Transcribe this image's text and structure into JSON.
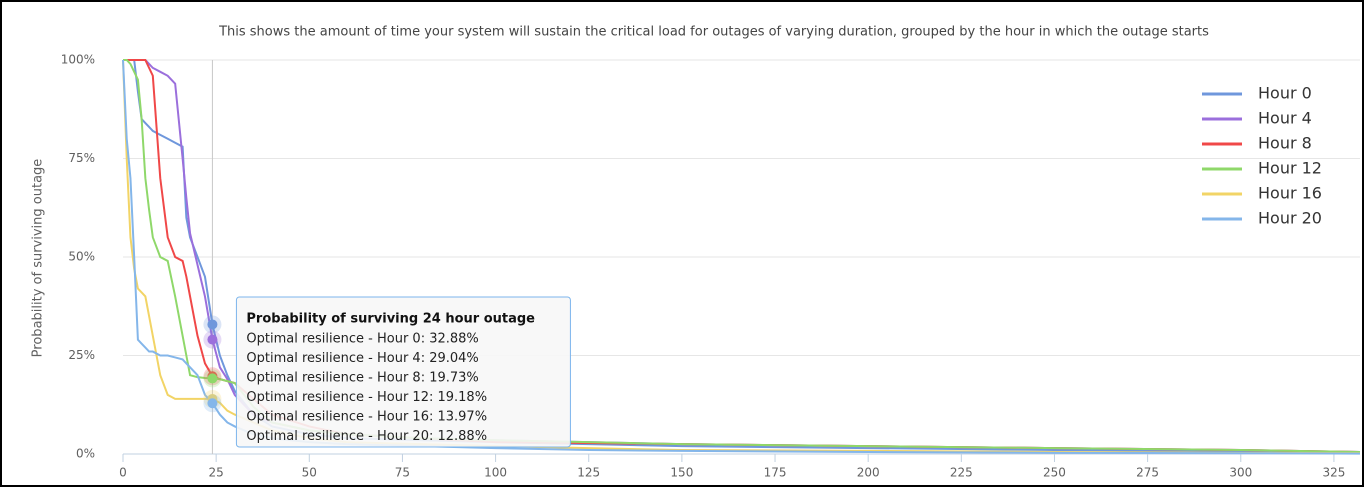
{
  "chart_data": {
    "type": "line",
    "subtitle": "This shows the amount of time your system will sustain the critical load for outages of varying duration, grouped by the hour in which the outage starts",
    "y_label": "Probability of surviving outage",
    "x": [
      0,
      1,
      2,
      3,
      4,
      5,
      6,
      7,
      8,
      10,
      12,
      14,
      16,
      17,
      18,
      20,
      22,
      24,
      26,
      28,
      30,
      35,
      40,
      50,
      60,
      80,
      100,
      125,
      150,
      200,
      250,
      300,
      332
    ],
    "series": [
      {
        "name": "Hour 0",
        "color": "#6f97dc",
        "values": [
          100,
          100,
          100,
          100,
          92,
          85,
          84,
          83,
          82,
          81,
          80,
          79,
          78,
          60,
          55,
          50,
          45,
          32.88,
          25,
          20,
          16,
          10,
          7,
          5,
          4,
          3.5,
          3,
          2.5,
          2,
          1.5,
          1,
          0.7,
          0.5
        ]
      },
      {
        "name": "Hour 4",
        "color": "#9b6fdc",
        "values": [
          100,
          100,
          100,
          100,
          100,
          100,
          100,
          99,
          98,
          97,
          96,
          94,
          75,
          65,
          56,
          48,
          40,
          29.04,
          22,
          19,
          15,
          10,
          8,
          6,
          5,
          4,
          3.5,
          3,
          2.5,
          2,
          1.5,
          1,
          0.5
        ]
      },
      {
        "name": "Hour 8",
        "color": "#f04848",
        "values": [
          100,
          100,
          100,
          100,
          100,
          100,
          100,
          98,
          96,
          70,
          55,
          50,
          49,
          45,
          40,
          30,
          23,
          19.73,
          19,
          18.5,
          18,
          14,
          10,
          7,
          5,
          4,
          3,
          2.8,
          2.5,
          2,
          1.5,
          1,
          0.5
        ]
      },
      {
        "name": "Hour 12",
        "color": "#8fd86a",
        "values": [
          100,
          100,
          99,
          97,
          95,
          85,
          70,
          62,
          55,
          50,
          49,
          40,
          30,
          25,
          20,
          19.5,
          19.3,
          19.18,
          19,
          18.5,
          18,
          12,
          8,
          6,
          5,
          4,
          3.5,
          3,
          2.5,
          2,
          1.5,
          1,
          0.5
        ]
      },
      {
        "name": "Hour 16",
        "color": "#f2d466",
        "values": [
          100,
          75,
          55,
          47,
          42,
          41,
          40,
          35,
          30,
          20,
          15,
          14,
          14,
          14,
          14,
          14,
          14,
          13.97,
          13,
          11,
          10,
          8,
          6,
          4,
          3,
          2.5,
          2,
          1.5,
          1,
          0.8,
          0.5,
          0.3,
          0.2
        ]
      },
      {
        "name": "Hour 20",
        "color": "#84b6ea",
        "values": [
          100,
          80,
          70,
          50,
          29,
          28,
          27,
          26,
          26,
          25,
          25,
          24.5,
          24,
          23,
          22,
          20,
          15,
          12.88,
          10,
          8,
          7,
          5,
          4,
          3,
          2.5,
          2,
          1.5,
          1,
          0.8,
          0.5,
          0.3,
          0.2,
          0.1
        ]
      }
    ],
    "xlim": [
      0,
      332
    ],
    "ylim": [
      0,
      100
    ],
    "xticks": [
      0,
      25,
      50,
      75,
      100,
      125,
      150,
      175,
      200,
      225,
      250,
      275,
      300,
      325
    ],
    "yticks": [
      {
        "value": 0,
        "label": "0%"
      },
      {
        "value": 25,
        "label": "25%"
      },
      {
        "value": 50,
        "label": "50%"
      },
      {
        "value": 75,
        "label": "75%"
      },
      {
        "value": 100,
        "label": "100%"
      }
    ],
    "grid": true,
    "legend": "top-right",
    "crosshair_x": 24,
    "tooltip": {
      "title": "Probability of surviving 24 hour outage",
      "items": [
        "Optimal resilience - Hour 0: 32.88%",
        "Optimal resilience - Hour 4: 29.04%",
        "Optimal resilience - Hour 8: 19.73%",
        "Optimal resilience - Hour 12: 19.18%",
        "Optimal resilience - Hour 16: 13.97%",
        "Optimal resilience - Hour 20: 12.88%"
      ]
    }
  }
}
